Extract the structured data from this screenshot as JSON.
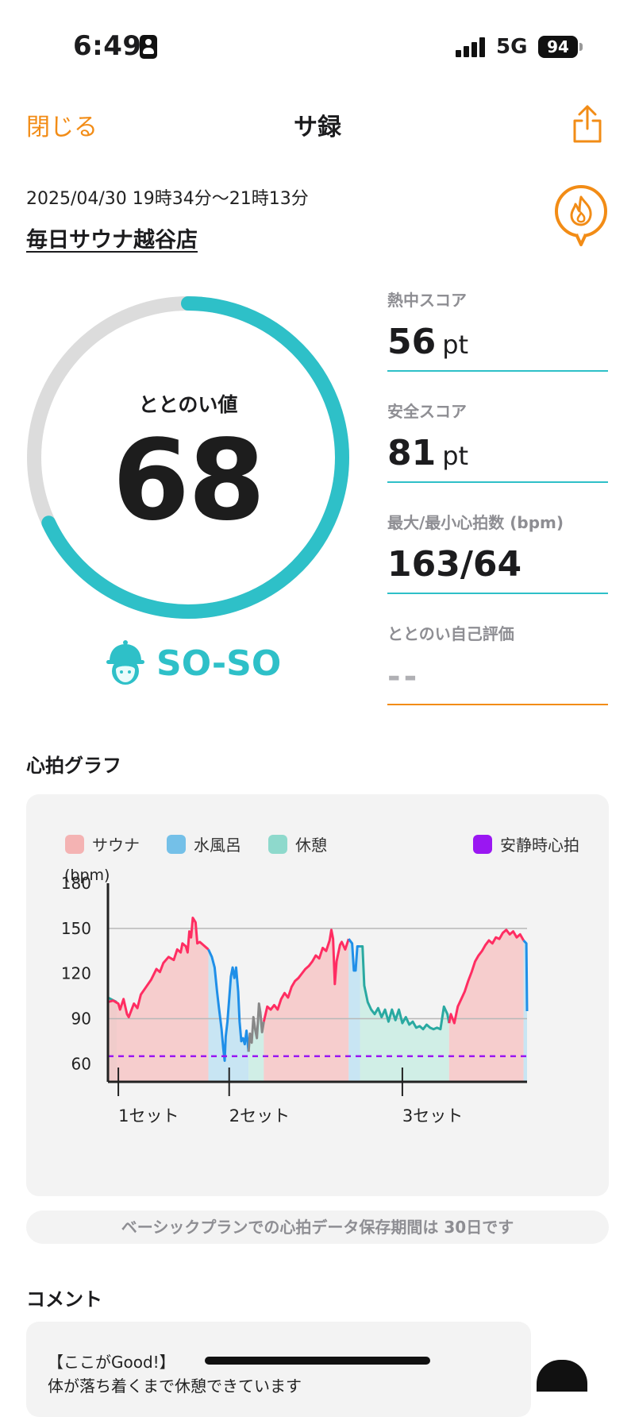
{
  "status_bar": {
    "time": "6:49",
    "network": "5G",
    "battery": "94"
  },
  "nav": {
    "close_label": "閉じる",
    "title": "サ録"
  },
  "session": {
    "datetime": "2025/04/30 19時34分〜21時13分",
    "store": "毎日サウナ越谷店"
  },
  "gauge": {
    "label": "ととのい値",
    "value": "68",
    "progress": 0.68,
    "mood": "SO-SO"
  },
  "stats": [
    {
      "label": "熱中スコア",
      "value": "56",
      "unit": "pt"
    },
    {
      "label": "安全スコア",
      "value": "81",
      "unit": "pt"
    },
    {
      "label": "最大/最小心拍数 (bpm)",
      "value": "163/64",
      "unit": ""
    },
    {
      "label": "ととのい自己評価",
      "value": "--",
      "unit": ""
    }
  ],
  "heart_section": {
    "title": "心拍グラフ"
  },
  "chart_data": {
    "type": "area",
    "legend": [
      {
        "name": "サウナ",
        "color": "#f4b3b3"
      },
      {
        "name": "水風呂",
        "color": "#74c0e8"
      },
      {
        "name": "休憩",
        "color": "#8ed9cc"
      },
      {
        "name": "安静時心拍",
        "color": "#9a17f2"
      }
    ],
    "ylabel": "(bpm)",
    "yticks": [
      180,
      150,
      120,
      90,
      60
    ],
    "ylim": [
      48,
      180
    ],
    "xlim": [
      0,
      100
    ],
    "gridlines": [
      150,
      90
    ],
    "resting_hr": 65,
    "set_markers": [
      {
        "label": "1セット",
        "x": 3
      },
      {
        "label": "2セット",
        "x": 35
      },
      {
        "label": "3セット",
        "x": 85
      }
    ],
    "segments": [
      {
        "phase": "rest",
        "color": "#2aa9a1",
        "points": [
          [
            0,
            104
          ],
          [
            2.5,
            101
          ]
        ]
      },
      {
        "phase": "sauna",
        "color": "#ff2d62",
        "points": [
          [
            0,
            101
          ],
          [
            1.5,
            102
          ],
          [
            3,
            100
          ],
          [
            3.5,
            96
          ],
          [
            4.5,
            103
          ],
          [
            5.5,
            93
          ],
          [
            6,
            91
          ],
          [
            7.5,
            100
          ],
          [
            8.5,
            97
          ],
          [
            9.5,
            106
          ],
          [
            11,
            111
          ],
          [
            12.5,
            116
          ],
          [
            14,
            123
          ],
          [
            15,
            121
          ],
          [
            16,
            127
          ],
          [
            17.5,
            131
          ],
          [
            19,
            129
          ],
          [
            20,
            136
          ],
          [
            21,
            134
          ],
          [
            21.5,
            140
          ],
          [
            22.5,
            138
          ],
          [
            23,
            134
          ],
          [
            23.5,
            148
          ],
          [
            24,
            144
          ],
          [
            24.5,
            157
          ],
          [
            25.3,
            154
          ],
          [
            25.8,
            140
          ],
          [
            26.5,
            141
          ],
          [
            27.5,
            139
          ],
          [
            28.5,
            137
          ],
          [
            29,
            136
          ]
        ]
      },
      {
        "phase": "cold",
        "color": "#1f8fe8",
        "points": [
          [
            29,
            136
          ],
          [
            30,
            131
          ],
          [
            30.8,
            124
          ],
          [
            31.5,
            108
          ],
          [
            32,
            98
          ],
          [
            32.8,
            83
          ],
          [
            33.3,
            70
          ],
          [
            33.7,
            62
          ],
          [
            34,
            78
          ],
          [
            34.5,
            88
          ],
          [
            35,
            103
          ],
          [
            35.5,
            118
          ],
          [
            36,
            124
          ],
          [
            36.5,
            117
          ],
          [
            37,
            124
          ],
          [
            37.6,
            108
          ],
          [
            38,
            88
          ],
          [
            38.5,
            75
          ],
          [
            39,
            77
          ],
          [
            39.5,
            73
          ],
          [
            40,
            82
          ],
          [
            40.6,
            68
          ]
        ]
      },
      {
        "phase": "rest",
        "color": "#888888",
        "points": [
          [
            40.6,
            68
          ],
          [
            41,
            80
          ],
          [
            41.5,
            74
          ],
          [
            42,
            91
          ],
          [
            42.5,
            83
          ],
          [
            43,
            77
          ],
          [
            43.3,
            88
          ],
          [
            43.6,
            100
          ],
          [
            44,
            94
          ],
          [
            44.5,
            81
          ],
          [
            45,
            88
          ]
        ]
      },
      {
        "phase": "sauna",
        "color": "#ff2d62",
        "points": [
          [
            45,
            88
          ],
          [
            46,
            98
          ],
          [
            47,
            96
          ],
          [
            48,
            99
          ],
          [
            49,
            96
          ],
          [
            50,
            103
          ],
          [
            51,
            107
          ],
          [
            52,
            104
          ],
          [
            53,
            111
          ],
          [
            54,
            115
          ],
          [
            55,
            117
          ],
          [
            56,
            120
          ],
          [
            57,
            123
          ],
          [
            58,
            125
          ],
          [
            59,
            128
          ],
          [
            60,
            132
          ],
          [
            61,
            130
          ],
          [
            62,
            137
          ],
          [
            63,
            135
          ],
          [
            64,
            142
          ],
          [
            64.5,
            149
          ],
          [
            65,
            143
          ],
          [
            65.5,
            113
          ],
          [
            66,
            128
          ],
          [
            67,
            139
          ],
          [
            67.5,
            141
          ],
          [
            68.5,
            136
          ],
          [
            69.5,
            143
          ]
        ]
      },
      {
        "phase": "cold",
        "color": "#1f8fe8",
        "points": [
          [
            69.5,
            143
          ],
          [
            70.5,
            140
          ],
          [
            71,
            122
          ],
          [
            71.5,
            122
          ],
          [
            72,
            138
          ],
          [
            72.8,
            138
          ]
        ]
      },
      {
        "phase": "rest",
        "color": "#2aa9a1",
        "points": [
          [
            72.8,
            138
          ],
          [
            73.5,
            138
          ],
          [
            74,
            112
          ],
          [
            75,
            101
          ],
          [
            76,
            96
          ],
          [
            77,
            93
          ],
          [
            78,
            97
          ],
          [
            79,
            91
          ],
          [
            80,
            96
          ],
          [
            81,
            88
          ],
          [
            82,
            96
          ],
          [
            83,
            89
          ],
          [
            84,
            96
          ],
          [
            85,
            87
          ],
          [
            86,
            91
          ],
          [
            87,
            86
          ],
          [
            88,
            88
          ],
          [
            89,
            84
          ],
          [
            90,
            85
          ],
          [
            91,
            83
          ],
          [
            92,
            86
          ],
          [
            93,
            84
          ],
          [
            94,
            83
          ],
          [
            95,
            84
          ],
          [
            96,
            83
          ],
          [
            97,
            98
          ],
          [
            98,
            93
          ],
          [
            98.5,
            87
          ]
        ]
      },
      {
        "phase": "sauna",
        "color": "#ff2d62",
        "points": [
          [
            98.5,
            87
          ],
          [
            99,
            93
          ],
          [
            100,
            87
          ],
          [
            101,
            98
          ],
          [
            102,
            103
          ],
          [
            103,
            108
          ],
          [
            104,
            115
          ],
          [
            105,
            121
          ],
          [
            106,
            128
          ],
          [
            107,
            132
          ],
          [
            108,
            135
          ],
          [
            109,
            139
          ],
          [
            110,
            142
          ],
          [
            111,
            140
          ],
          [
            112,
            144
          ],
          [
            113,
            143
          ],
          [
            114,
            147
          ],
          [
            115,
            149
          ],
          [
            116,
            146
          ],
          [
            117,
            148
          ],
          [
            118,
            144
          ],
          [
            119,
            146
          ],
          [
            120,
            142
          ]
        ]
      },
      {
        "phase": "cold",
        "color": "#1f8fe8",
        "points": [
          [
            120,
            142
          ],
          [
            120.8,
            140
          ],
          [
            121,
            95
          ]
        ]
      }
    ]
  },
  "notice": "ベーシックプランでの心拍データ保存期間は 30日です",
  "comment_section": {
    "title": "コメント",
    "lines": [
      "【ここがGood!】",
      "体が落ち着くまで休憩できています"
    ]
  },
  "colors": {
    "accent": "#f28c16",
    "teal": "#2ec0c8",
    "gauge_track": "#dcdcdc"
  }
}
